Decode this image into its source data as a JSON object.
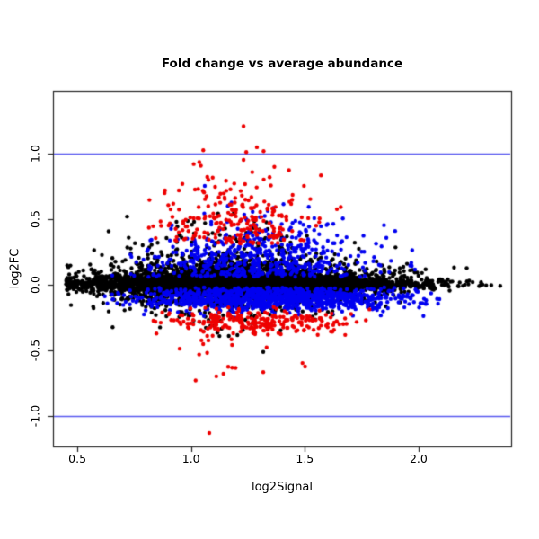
{
  "chart_data": {
    "type": "scatter",
    "title": "Fold change vs average abundance",
    "xlabel": "log2Signal",
    "ylabel": "log2FC",
    "xlim": [
      0.393,
      2.407
    ],
    "ylim": [
      -1.233,
      1.479
    ],
    "grid": false,
    "legend": "none",
    "point_radius_px": 2.2,
    "x_axis": {
      "label": "log2Signal",
      "ticks": [
        {
          "value": 0.5,
          "label": "0.5"
        },
        {
          "value": 1.0,
          "label": "1.0"
        },
        {
          "value": 1.5,
          "label": "1.5"
        },
        {
          "value": 2.0,
          "label": "2.0"
        }
      ]
    },
    "y_axis": {
      "label": "log2FC",
      "ticks": [
        {
          "value": -1.0,
          "label": "-1.0"
        },
        {
          "value": -0.5,
          "label": "-0.5"
        },
        {
          "value": 0.0,
          "label": "0.0"
        },
        {
          "value": 0.5,
          "label": "0.5"
        },
        {
          "value": 1.0,
          "label": "1.0"
        }
      ]
    },
    "reference_lines": [
      {
        "y": 1.0,
        "color": "#5a5af0"
      },
      {
        "y": -1.0,
        "color": "#5a5af0"
      }
    ],
    "colors": {
      "non_significant": "#000000",
      "significant_blue": "#0000f0",
      "significant_red": "#ee0000",
      "box": "#222222",
      "background": "#ffffff"
    },
    "seed": 42,
    "series": [
      {
        "name": "non-significant-black-cloud",
        "color": "#000000",
        "count": 5200,
        "x": {
          "dist": "normal",
          "mean": 1.22,
          "sd": 0.37,
          "clip": [
            0.45,
            2.36
          ]
        },
        "y": {
          "kind": "scaled-mixture",
          "components": [
            {
              "w": 0.62,
              "mean": 0.005,
              "sd": 0.05
            },
            {
              "w": 0.28,
              "mean": 0.02,
              "sd": 0.115
            },
            {
              "w": 0.1,
              "mean": 0.06,
              "sd": 0.21
            }
          ],
          "width": {
            "center": 1.12,
            "sd": 0.42,
            "floor": 0.3
          },
          "clip": [
            -0.72,
            1.25
          ]
        }
      },
      {
        "name": "blue-lower-band",
        "color": "#0000f0",
        "count": 1150,
        "x": {
          "dist": "normal",
          "mean": 1.38,
          "sd": 0.3,
          "clip": [
            0.62,
            2.1
          ]
        },
        "y": {
          "dist": "normal",
          "mean": -0.105,
          "sd": 0.045,
          "clip": [
            -0.26,
            -0.02
          ]
        }
      },
      {
        "name": "blue-upper-scatter",
        "color": "#0000f0",
        "count": 560,
        "x": {
          "dist": "normal",
          "mean": 1.3,
          "sd": 0.27,
          "clip": [
            0.62,
            2.02
          ]
        },
        "y": {
          "dist": "halfnormal-up",
          "offset": 0.06,
          "sd": 0.2,
          "clip": [
            0.06,
            0.78
          ]
        }
      },
      {
        "name": "red-upper-plume",
        "color": "#ee0000",
        "count": 240,
        "x": {
          "dist": "normal",
          "mean": 1.19,
          "sd": 0.17,
          "clip": [
            0.7,
            1.82
          ]
        },
        "y": {
          "dist": "halfnormal-up",
          "offset": 0.3,
          "sd": 0.3,
          "clip": [
            0.3,
            1.42
          ]
        }
      },
      {
        "name": "red-lower-band",
        "color": "#ee0000",
        "count": 250,
        "x": {
          "dist": "normal",
          "mean": 1.28,
          "sd": 0.22,
          "clip": [
            0.8,
            1.86
          ]
        },
        "y": {
          "dist": "normal",
          "mean": -0.28,
          "sd": 0.055,
          "clip": [
            -0.44,
            -0.16
          ]
        }
      },
      {
        "name": "red-deep-scatter",
        "color": "#ee0000",
        "count": 14,
        "x": {
          "dist": "normal",
          "mean": 1.12,
          "sd": 0.16,
          "clip": [
            0.85,
            1.55
          ]
        },
        "y": {
          "dist": "uniform",
          "min": -0.7,
          "max": -0.44
        }
      }
    ],
    "outlier_points": [
      {
        "x": 1.02,
        "y": -0.73,
        "color": "#ee0000"
      },
      {
        "x": 1.08,
        "y": -1.13,
        "color": "#ee0000"
      }
    ]
  }
}
